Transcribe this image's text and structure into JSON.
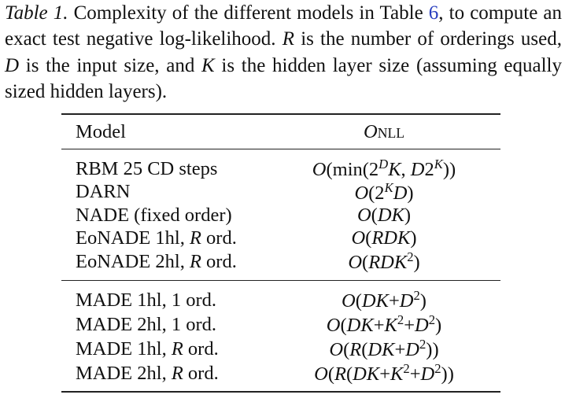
{
  "caption": [
    {
      "text": "Table 1.",
      "style": "italic"
    },
    {
      "text": " Complexity of the different models in Table ",
      "style": "normal"
    },
    {
      "text": "6",
      "style": "link"
    },
    {
      "text": ", to compute an exact test negative log-likelihood. ",
      "style": "normal"
    },
    {
      "text": "R",
      "style": "italic"
    },
    {
      "text": " is the number of orderings used, ",
      "style": "normal"
    },
    {
      "text": "D",
      "style": "italic"
    },
    {
      "text": " is the input size, and ",
      "style": "normal"
    },
    {
      "text": "K",
      "style": "italic"
    },
    {
      "text": " is the hidden layer size (assuming equally sized hidden layers).",
      "style": "normal"
    }
  ],
  "table": {
    "header": {
      "model": "Model",
      "complexity": [
        {
          "text": "O",
          "style": "italic"
        },
        {
          "text": "NLL",
          "style": "smallcaps"
        }
      ]
    },
    "groups": [
      [
        {
          "model": "RBM 25 CD steps",
          "complexity": [
            {
              "text": "O",
              "style": "italic"
            },
            {
              "text": "(min(2",
              "style": "normal"
            },
            {
              "text": "D",
              "style": "sup-italic"
            },
            {
              "text": "K",
              "style": "italic"
            },
            {
              "text": ", ",
              "style": "normal"
            },
            {
              "text": "D",
              "style": "italic"
            },
            {
              "text": "2",
              "style": "normal"
            },
            {
              "text": "K",
              "style": "sup-italic"
            },
            {
              "text": "))",
              "style": "normal"
            }
          ]
        },
        {
          "model": "DARN",
          "complexity": [
            {
              "text": "O",
              "style": "italic"
            },
            {
              "text": "(2",
              "style": "normal"
            },
            {
              "text": "K",
              "style": "sup-italic"
            },
            {
              "text": "D",
              "style": "italic"
            },
            {
              "text": ")",
              "style": "normal"
            }
          ]
        },
        {
          "model": "NADE (fixed order)",
          "complexity": [
            {
              "text": "O",
              "style": "italic"
            },
            {
              "text": "(",
              "style": "normal"
            },
            {
              "text": "DK",
              "style": "italic"
            },
            {
              "text": ")",
              "style": "normal"
            }
          ]
        },
        {
          "model": [
            {
              "text": "EoNADE 1hl, ",
              "style": "normal"
            },
            {
              "text": "R",
              "style": "italic"
            },
            {
              "text": " ord.",
              "style": "normal"
            }
          ],
          "complexity": [
            {
              "text": "O",
              "style": "italic"
            },
            {
              "text": "(",
              "style": "normal"
            },
            {
              "text": "RDK",
              "style": "italic"
            },
            {
              "text": ")",
              "style": "normal"
            }
          ]
        },
        {
          "model": [
            {
              "text": "EoNADE 2hl, ",
              "style": "normal"
            },
            {
              "text": "R",
              "style": "italic"
            },
            {
              "text": " ord.",
              "style": "normal"
            }
          ],
          "complexity": [
            {
              "text": "O",
              "style": "italic"
            },
            {
              "text": "(",
              "style": "normal"
            },
            {
              "text": "RDK",
              "style": "italic"
            },
            {
              "text": "2",
              "style": "sup"
            },
            {
              "text": ")",
              "style": "normal"
            }
          ]
        }
      ],
      [
        {
          "model": "MADE 1hl, 1 ord.",
          "complexity": [
            {
              "text": "O",
              "style": "italic"
            },
            {
              "text": "(",
              "style": "normal"
            },
            {
              "text": "DK",
              "style": "italic"
            },
            {
              "text": "+",
              "style": "normal"
            },
            {
              "text": "D",
              "style": "italic"
            },
            {
              "text": "2",
              "style": "sup"
            },
            {
              "text": ")",
              "style": "normal"
            }
          ]
        },
        {
          "model": "MADE 2hl, 1 ord.",
          "complexity": [
            {
              "text": "O",
              "style": "italic"
            },
            {
              "text": "(",
              "style": "normal"
            },
            {
              "text": "DK",
              "style": "italic"
            },
            {
              "text": "+",
              "style": "normal"
            },
            {
              "text": "K",
              "style": "italic"
            },
            {
              "text": "2",
              "style": "sup"
            },
            {
              "text": "+",
              "style": "normal"
            },
            {
              "text": "D",
              "style": "italic"
            },
            {
              "text": "2",
              "style": "sup"
            },
            {
              "text": ")",
              "style": "normal"
            }
          ]
        },
        {
          "model": [
            {
              "text": "MADE 1hl, ",
              "style": "normal"
            },
            {
              "text": "R",
              "style": "italic"
            },
            {
              "text": " ord.",
              "style": "normal"
            }
          ],
          "complexity": [
            {
              "text": "O",
              "style": "italic"
            },
            {
              "text": "(",
              "style": "normal"
            },
            {
              "text": "R",
              "style": "italic"
            },
            {
              "text": "(",
              "style": "normal"
            },
            {
              "text": "DK",
              "style": "italic"
            },
            {
              "text": "+",
              "style": "normal"
            },
            {
              "text": "D",
              "style": "italic"
            },
            {
              "text": "2",
              "style": "sup"
            },
            {
              "text": "))",
              "style": "normal"
            }
          ]
        },
        {
          "model": [
            {
              "text": "MADE 2hl, ",
              "style": "normal"
            },
            {
              "text": "R",
              "style": "italic"
            },
            {
              "text": " ord.",
              "style": "normal"
            }
          ],
          "complexity": [
            {
              "text": "O",
              "style": "italic"
            },
            {
              "text": "(",
              "style": "normal"
            },
            {
              "text": "R",
              "style": "italic"
            },
            {
              "text": "(",
              "style": "normal"
            },
            {
              "text": "DK",
              "style": "italic"
            },
            {
              "text": "+",
              "style": "normal"
            },
            {
              "text": "K",
              "style": "italic"
            },
            {
              "text": "2",
              "style": "sup"
            },
            {
              "text": "+",
              "style": "normal"
            },
            {
              "text": "D",
              "style": "italic"
            },
            {
              "text": "2",
              "style": "sup"
            },
            {
              "text": "))",
              "style": "normal"
            }
          ]
        }
      ]
    ]
  }
}
